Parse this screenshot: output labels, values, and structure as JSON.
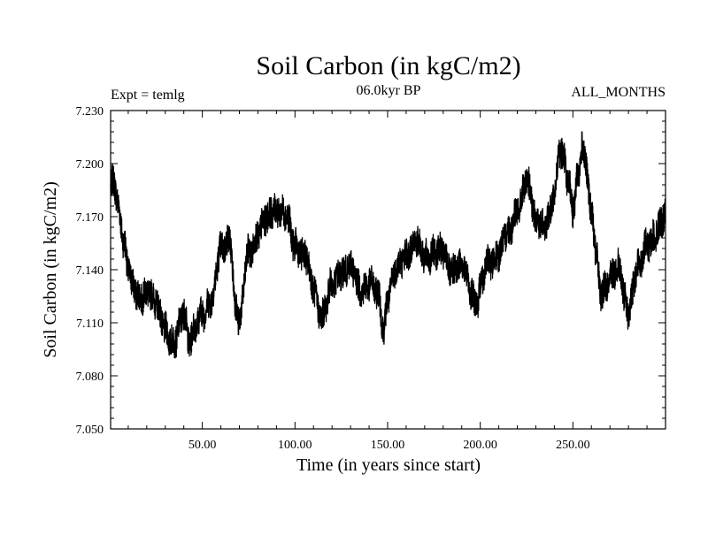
{
  "chart_data": {
    "type": "line",
    "title": "Soil Carbon (in kgC/m2)",
    "subtitle_left": "Expt = temlg",
    "subtitle_center": "06.0kyr BP",
    "subtitle_right": "ALL_MONTHS",
    "xlabel": "Time (in years since start)",
    "ylabel": "Soil Carbon (in kgC/m2)",
    "xlim": [
      0.5,
      300
    ],
    "ylim": [
      7.05,
      7.23
    ],
    "x_ticks": [
      50,
      100,
      150,
      200,
      250
    ],
    "x_tick_labels": [
      "50.00",
      "100.00",
      "150.00",
      "200.00",
      "250.00"
    ],
    "y_ticks": [
      7.05,
      7.08,
      7.11,
      7.14,
      7.17,
      7.2,
      7.23
    ],
    "y_tick_labels": [
      "7.050",
      "7.080",
      "7.110",
      "7.140",
      "7.170",
      "7.200",
      "7.230"
    ],
    "series": [
      {
        "name": "Soil Carbon",
        "monthly_noise_amplitude": 0.009,
        "anchors": {
          "x": [
            0.5,
            2,
            5,
            8,
            10,
            12,
            15,
            20,
            25,
            30,
            33,
            35,
            38,
            40,
            43,
            45,
            48,
            50,
            55,
            60,
            65,
            68,
            70,
            75,
            80,
            85,
            88,
            90,
            95,
            100,
            105,
            110,
            113,
            115,
            120,
            125,
            130,
            135,
            140,
            145,
            148,
            150,
            155,
            160,
            165,
            170,
            175,
            180,
            185,
            190,
            195,
            198,
            200,
            205,
            210,
            215,
            220,
            225,
            230,
            235,
            238,
            240,
            243,
            245,
            248,
            250,
            253,
            255,
            257,
            260,
            263,
            265,
            270,
            275,
            278,
            280,
            285,
            290,
            295,
            300
          ],
          "y": [
            7.183,
            7.19,
            7.175,
            7.155,
            7.14,
            7.13,
            7.125,
            7.128,
            7.12,
            7.108,
            7.1,
            7.097,
            7.108,
            7.118,
            7.1,
            7.105,
            7.11,
            7.115,
            7.125,
            7.15,
            7.158,
            7.12,
            7.11,
            7.15,
            7.16,
            7.168,
            7.175,
            7.175,
            7.17,
            7.155,
            7.148,
            7.13,
            7.118,
            7.115,
            7.13,
            7.14,
            7.14,
            7.13,
            7.132,
            7.125,
            7.108,
            7.125,
            7.14,
            7.15,
            7.155,
            7.148,
            7.15,
            7.148,
            7.14,
            7.142,
            7.13,
            7.12,
            7.13,
            7.145,
            7.15,
            7.16,
            7.175,
            7.188,
            7.17,
            7.165,
            7.17,
            7.185,
            7.21,
            7.205,
            7.185,
            7.172,
            7.195,
            7.212,
            7.2,
            7.17,
            7.145,
            7.128,
            7.135,
            7.14,
            7.125,
            7.118,
            7.14,
            7.155,
            7.16,
            7.17
          ]
        }
      }
    ]
  }
}
